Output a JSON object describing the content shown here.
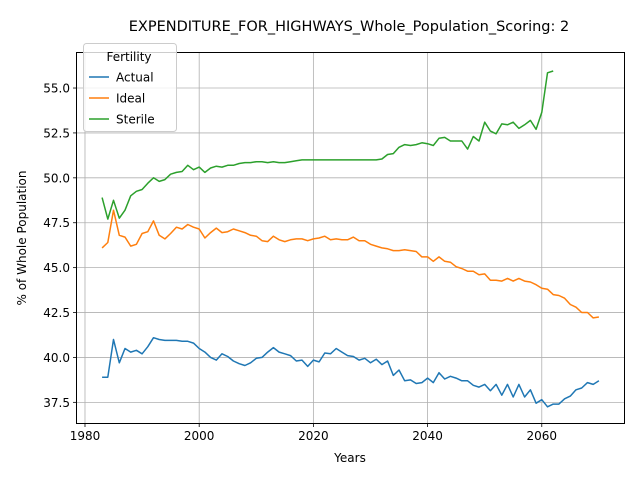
{
  "chart_data": {
    "type": "line",
    "title": "EXPENDITURE_FOR_HIGHWAYS_Whole_Population_Scoring: 2",
    "xlabel": "Years",
    "ylabel": "% of Whole Population",
    "xlim": [
      1978.6,
      2074.4
    ],
    "ylim": [
      36.35,
      56.95
    ],
    "xticks": [
      1980,
      2000,
      2020,
      2040,
      2060
    ],
    "yticks": [
      37.5,
      40.0,
      42.5,
      45.0,
      47.5,
      50.0,
      52.5,
      55.0
    ],
    "ytick_labels": [
      "37.5",
      "40.0",
      "42.5",
      "45.0",
      "47.5",
      "50.0",
      "52.5",
      "55.0"
    ],
    "grid": true,
    "legend": {
      "title": "Fertility",
      "position": "top-left"
    },
    "series": [
      {
        "name": "Actual",
        "color": "#1f77b4",
        "x": [
          1983,
          1984,
          1985,
          1986,
          1987,
          1988,
          1989,
          1990,
          1991,
          1992,
          1993,
          1994,
          1995,
          1996,
          1997,
          1998,
          1999,
          2000,
          2001,
          2002,
          2003,
          2004,
          2005,
          2006,
          2007,
          2008,
          2009,
          2010,
          2011,
          2012,
          2013,
          2014,
          2015,
          2016,
          2017,
          2018,
          2019,
          2020,
          2021,
          2022,
          2023,
          2024,
          2025,
          2026,
          2027,
          2028,
          2029,
          2030,
          2031,
          2032,
          2033,
          2034,
          2035,
          2036,
          2037,
          2038,
          2039,
          2040,
          2041,
          2042,
          2043,
          2044,
          2045,
          2046,
          2047,
          2048,
          2049,
          2050,
          2051,
          2052,
          2053,
          2054,
          2055,
          2056,
          2057,
          2058,
          2059,
          2060,
          2061,
          2062,
          2063,
          2064,
          2065,
          2066,
          2067,
          2068,
          2069,
          2070
        ],
        "y": [
          38.9,
          38.9,
          41.0,
          39.7,
          40.5,
          40.3,
          40.4,
          40.2,
          40.6,
          41.1,
          41.0,
          40.95,
          40.95,
          40.95,
          40.9,
          40.9,
          40.8,
          40.5,
          40.3,
          40.0,
          39.85,
          40.2,
          40.05,
          39.8,
          39.65,
          39.55,
          39.7,
          39.95,
          40.0,
          40.3,
          40.55,
          40.3,
          40.2,
          40.1,
          39.8,
          39.85,
          39.5,
          39.85,
          39.75,
          40.25,
          40.2,
          40.5,
          40.3,
          40.1,
          40.05,
          39.85,
          39.95,
          39.7,
          39.9,
          39.6,
          39.8,
          39.0,
          39.3,
          38.7,
          38.75,
          38.55,
          38.6,
          38.85,
          38.6,
          39.15,
          38.8,
          38.95,
          38.85,
          38.7,
          38.7,
          38.45,
          38.35,
          38.5,
          38.15,
          38.5,
          37.9,
          38.5,
          37.8,
          38.5,
          37.8,
          38.2,
          37.45,
          37.65,
          37.25,
          37.4,
          37.4,
          37.7,
          37.85,
          38.2,
          38.3,
          38.6,
          38.5,
          38.7
        ]
      },
      {
        "name": "Ideal",
        "color": "#ff7f0e",
        "x": [
          1983,
          1984,
          1985,
          1986,
          1987,
          1988,
          1989,
          1990,
          1991,
          1992,
          1993,
          1994,
          1995,
          1996,
          1997,
          1998,
          1999,
          2000,
          2001,
          2002,
          2003,
          2004,
          2005,
          2006,
          2007,
          2008,
          2009,
          2010,
          2011,
          2012,
          2013,
          2014,
          2015,
          2016,
          2017,
          2018,
          2019,
          2020,
          2021,
          2022,
          2023,
          2024,
          2025,
          2026,
          2027,
          2028,
          2029,
          2030,
          2031,
          2032,
          2033,
          2034,
          2035,
          2036,
          2037,
          2038,
          2039,
          2040,
          2041,
          2042,
          2043,
          2044,
          2045,
          2046,
          2047,
          2048,
          2049,
          2050,
          2051,
          2052,
          2053,
          2054,
          2055,
          2056,
          2057,
          2058,
          2059,
          2060,
          2061,
          2062,
          2063,
          2064,
          2065,
          2066,
          2067,
          2068,
          2069,
          2070
        ],
        "y": [
          46.1,
          46.4,
          48.2,
          46.8,
          46.7,
          46.2,
          46.3,
          46.9,
          47.0,
          47.6,
          46.8,
          46.6,
          46.9,
          47.25,
          47.15,
          47.4,
          47.25,
          47.15,
          46.65,
          46.95,
          47.2,
          46.95,
          47.0,
          47.15,
          47.05,
          46.95,
          46.8,
          46.75,
          46.5,
          46.45,
          46.75,
          46.55,
          46.45,
          46.55,
          46.6,
          46.6,
          46.5,
          46.6,
          46.65,
          46.75,
          46.55,
          46.6,
          46.55,
          46.55,
          46.7,
          46.5,
          46.5,
          46.3,
          46.2,
          46.1,
          46.05,
          45.95,
          45.95,
          46.0,
          45.95,
          45.9,
          45.6,
          45.6,
          45.35,
          45.6,
          45.35,
          45.3,
          45.05,
          44.95,
          44.8,
          44.8,
          44.6,
          44.65,
          44.3,
          44.3,
          44.25,
          44.4,
          44.25,
          44.4,
          44.25,
          44.2,
          44.05,
          43.85,
          43.8,
          43.5,
          43.45,
          43.3,
          42.95,
          42.8,
          42.5,
          42.5,
          42.2,
          42.25
        ]
      },
      {
        "name": "Sterile",
        "color": "#2ca02c",
        "x": [
          1983,
          1984,
          1985,
          1986,
          1987,
          1988,
          1989,
          1990,
          1991,
          1992,
          1993,
          1994,
          1995,
          1996,
          1997,
          1998,
          1999,
          2000,
          2001,
          2002,
          2003,
          2004,
          2005,
          2006,
          2007,
          2008,
          2009,
          2010,
          2011,
          2012,
          2013,
          2014,
          2015,
          2016,
          2017,
          2018,
          2019,
          2020,
          2021,
          2022,
          2023,
          2024,
          2025,
          2026,
          2027,
          2028,
          2029,
          2030,
          2031,
          2032,
          2033,
          2034,
          2035,
          2036,
          2037,
          2038,
          2039,
          2040,
          2041,
          2042,
          2043,
          2044,
          2045,
          2046,
          2047,
          2048,
          2049,
          2050,
          2051,
          2052,
          2053,
          2054,
          2055,
          2056,
          2057,
          2058,
          2059,
          2060,
          2061,
          2062
        ],
        "y": [
          48.9,
          47.7,
          48.75,
          47.75,
          48.2,
          49.0,
          49.25,
          49.35,
          49.7,
          50.0,
          49.8,
          49.9,
          50.2,
          50.3,
          50.35,
          50.7,
          50.45,
          50.6,
          50.3,
          50.55,
          50.65,
          50.6,
          50.7,
          50.7,
          50.8,
          50.85,
          50.85,
          50.9,
          50.9,
          50.85,
          50.9,
          50.85,
          50.85,
          50.9,
          50.95,
          51.0,
          51.0,
          51.0,
          51.0,
          51.0,
          51.0,
          51.0,
          51.0,
          51.0,
          51.0,
          51.0,
          51.0,
          51.0,
          51.0,
          51.05,
          51.3,
          51.35,
          51.7,
          51.85,
          51.8,
          51.85,
          51.95,
          51.9,
          51.8,
          52.2,
          52.25,
          52.05,
          52.05,
          52.05,
          51.6,
          52.3,
          52.05,
          53.1,
          52.6,
          52.45,
          53.0,
          52.95,
          53.1,
          52.75,
          52.95,
          53.2,
          52.7,
          53.65,
          55.85,
          55.95
        ]
      }
    ]
  }
}
